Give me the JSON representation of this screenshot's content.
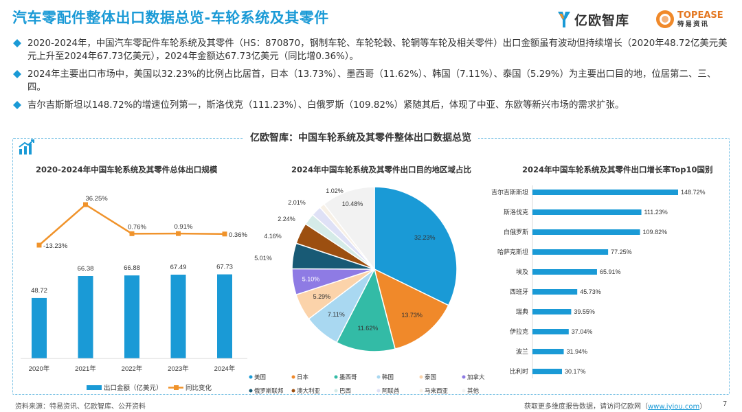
{
  "title": "汽车零配件整体出口数据总览-车轮系统及其零件",
  "logos": {
    "yiou": "亿欧智库",
    "topease_en": "TOPEASE",
    "topease_cn": "特易资讯"
  },
  "bullets": [
    "2020-2024年，中国汽车零配件车轮系统及其零件（HS：870870，钢制车轮、车轮轮毂、轮辋等车轮及相关零件）出口金额虽有波动但持续增长（2020年48.72亿美元美元上升至2024年67.73亿美元），2024年金额达67.73亿美元（同比增0.36%）。",
    "2024年主要出口市场中，美国以32.23%的比例占比居首，日本（13.73%）、墨西哥（11.62%）、韩国（7.11%）、泰国（5.29%）为主要出口目的地，位居第二、三、四。",
    "吉尔吉斯斯坦以148.72%的增速位列第一，斯洛伐克（111.23%）、白俄罗斯（109.82%）紧随其后，体现了中亚、东欧等新兴市场的需求扩张。"
  ],
  "panel_title": "亿欧智库：中国车轮系统及其零件整体出口数据总览",
  "footer": {
    "source": "资料来源：特易资讯、亿欧智库、公开资料",
    "more": "获取更多维度报告数据，请访问亿欧网（",
    "link": "www.iyiou.com",
    "close": "）",
    "page": "7"
  },
  "chart_data": [
    {
      "type": "bar",
      "title": "2020-2024年中国车轮系统及其零件总体出口规模",
      "categories": [
        "2020年",
        "2021年",
        "2022年",
        "2023年",
        "2024年"
      ],
      "series": [
        {
          "name": "出口金额（亿美元）",
          "type": "bar",
          "values": [
            48.72,
            66.38,
            66.88,
            67.49,
            67.73
          ],
          "color": "#1a9ad6"
        },
        {
          "name": "同比变化",
          "type": "line",
          "values": [
            -13.23,
            36.25,
            0.76,
            0.91,
            0.36
          ],
          "labels": [
            "-13.23%",
            "36.25%",
            "0.76%",
            "0.91%",
            "0.36%"
          ],
          "color": "#f0932b"
        }
      ],
      "legend": "bottom"
    },
    {
      "type": "pie",
      "title": "2024年中国车轮系统及其零件出口目的地区域占比",
      "slices": [
        {
          "name": "美国",
          "value": 32.23,
          "label": "32.23%",
          "color": "#1a9ad6"
        },
        {
          "name": "日本",
          "value": 13.73,
          "label": "13.73%",
          "color": "#f0892a"
        },
        {
          "name": "墨西哥",
          "value": 11.62,
          "label": "11.62%",
          "color": "#33bba6"
        },
        {
          "name": "韩国",
          "value": 7.11,
          "label": "7.11%",
          "color": "#a9d8f1"
        },
        {
          "name": "泰国",
          "value": 5.29,
          "label": "5.29%",
          "color": "#fbd3aa"
        },
        {
          "name": "加拿大",
          "value": 5.1,
          "label": "5.10%",
          "color": "#8e7be4"
        },
        {
          "name": "俄罗斯联邦",
          "value": 5.01,
          "label": "5.01%",
          "color": "#185a75"
        },
        {
          "name": "澳大利亚",
          "value": 4.16,
          "label": "4.16%",
          "color": "#9c4f10"
        },
        {
          "name": "巴西",
          "value": 2.24,
          "label": "2.24%",
          "color": "#d5ebe8"
        },
        {
          "name": "阿联酋",
          "value": 2.01,
          "label": "2.01%",
          "color": "#dfe1f6"
        },
        {
          "name": "马来西亚",
          "value": 1.02,
          "label": "1.02%",
          "color": "#f7f0e6"
        },
        {
          "name": "其他",
          "value": 10.48,
          "label": "10.48%",
          "color": "#f2f2f2"
        }
      ],
      "legend": "bottom"
    },
    {
      "type": "bar",
      "orientation": "horizontal",
      "title": "2024年中国车轮系统及其零件出口增长率Top10国别",
      "categories": [
        "吉尔吉斯斯坦",
        "斯洛伐克",
        "白俄罗斯",
        "哈萨克斯坦",
        "埃及",
        "西班牙",
        "瑞典",
        "伊拉克",
        "波兰",
        "比利时"
      ],
      "values": [
        148.72,
        111.23,
        109.82,
        77.25,
        65.91,
        45.73,
        39.55,
        37.04,
        31.94,
        30.17
      ],
      "labels": [
        "148.72%",
        "111.23%",
        "109.82%",
        "77.25%",
        "65.91%",
        "45.73%",
        "39.55%",
        "37.04%",
        "31.94%",
        "30.17%"
      ],
      "color": "#1a9ad6"
    }
  ]
}
